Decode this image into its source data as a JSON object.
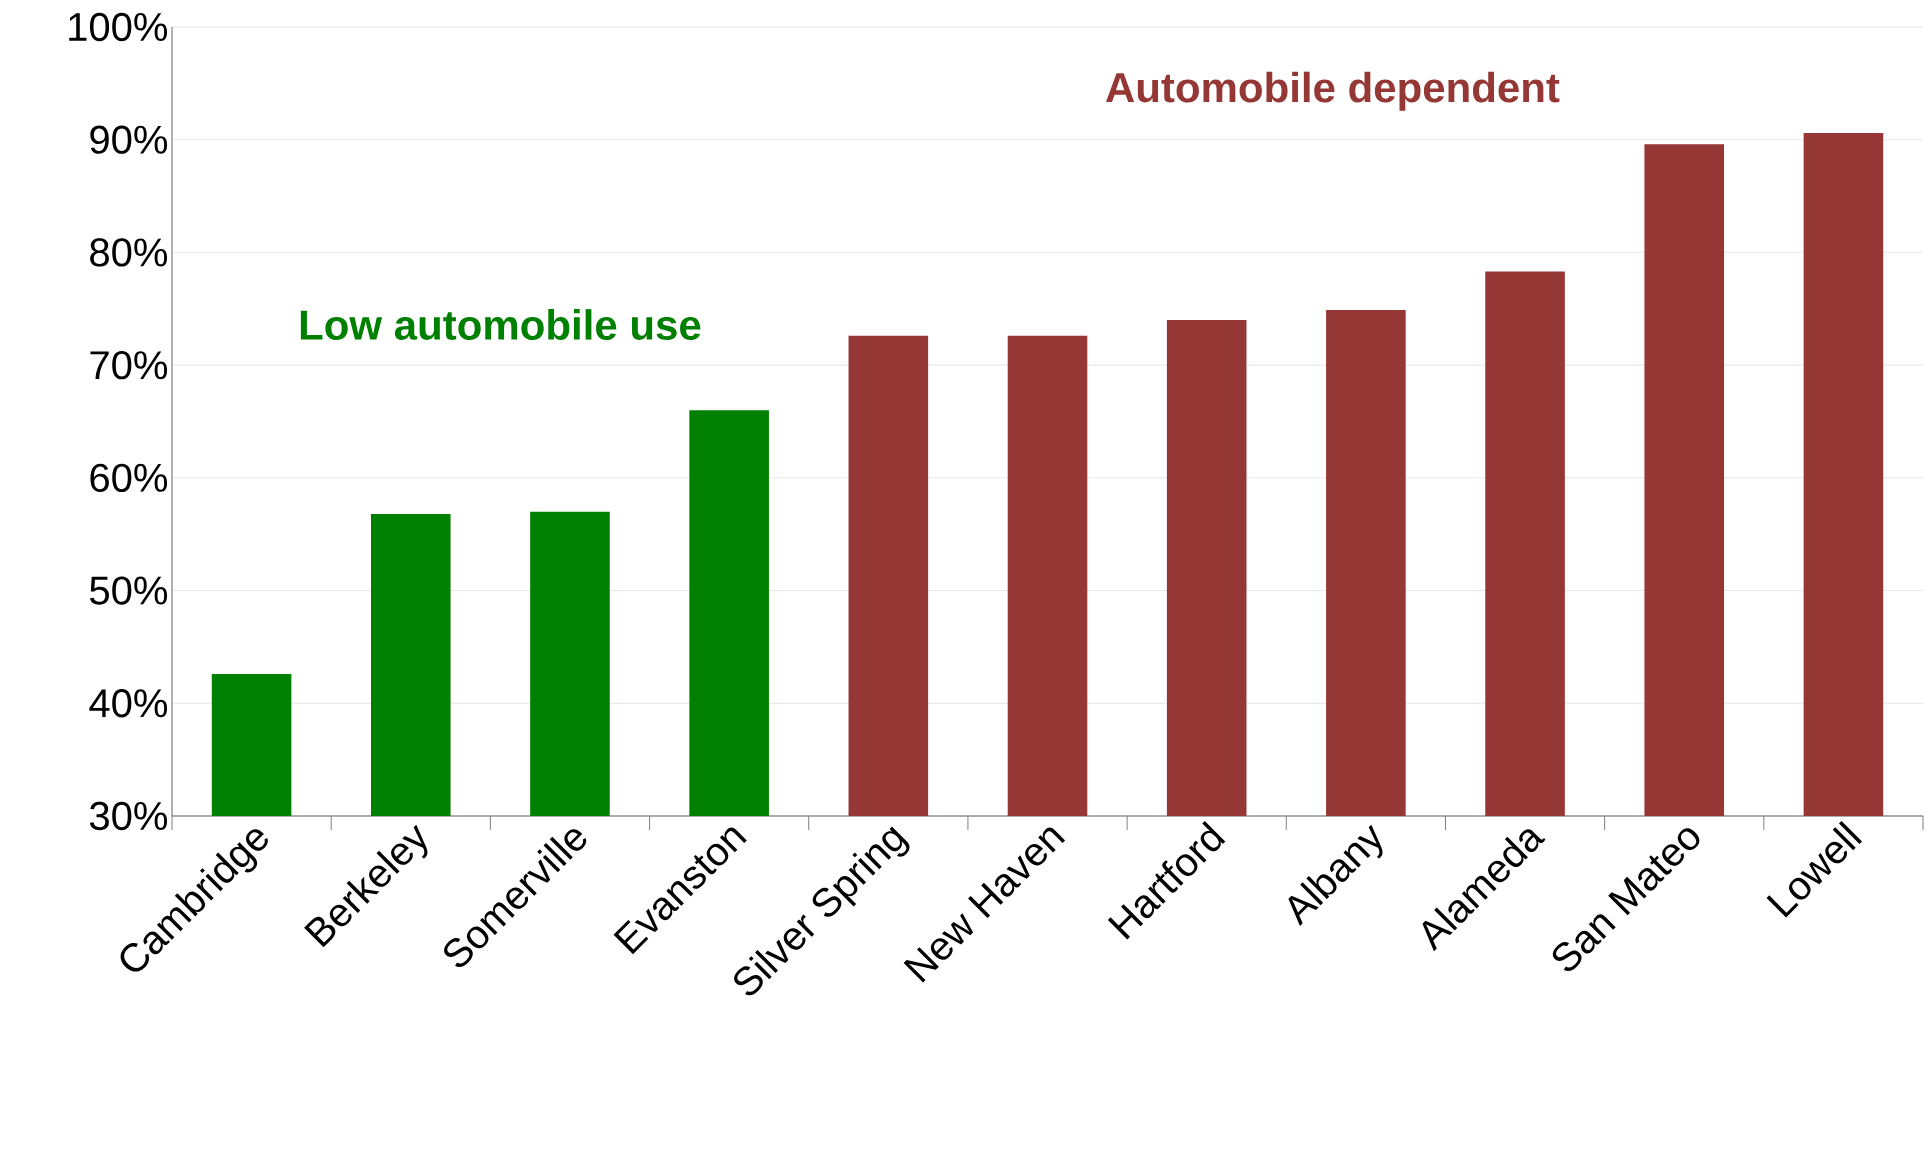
{
  "chart_data": {
    "type": "bar",
    "categories": [
      "Cambridge",
      "Berkeley",
      "Somerville",
      "Evanston",
      "Silver Spring",
      "New Haven",
      "Hartford",
      "Albany",
      "Alameda",
      "San Mateo",
      "Lowell"
    ],
    "values": [
      42.6,
      56.8,
      57.0,
      66.0,
      72.6,
      72.6,
      74.0,
      74.9,
      78.3,
      89.6,
      90.6
    ],
    "colors": [
      "#008000",
      "#008000",
      "#008000",
      "#008000",
      "#953735",
      "#953735",
      "#953735",
      "#953735",
      "#953735",
      "#953735",
      "#953735"
    ],
    "ylim": [
      30,
      100
    ],
    "yticks": [
      {
        "value": 30,
        "label": "30%"
      },
      {
        "value": 40,
        "label": "40%"
      },
      {
        "value": 50,
        "label": "50%"
      },
      {
        "value": 60,
        "label": "60%"
      },
      {
        "value": 70,
        "label": "70%"
      },
      {
        "value": 80,
        "label": "80%"
      },
      {
        "value": 90,
        "label": "90%"
      },
      {
        "value": 100,
        "label": "100%"
      }
    ],
    "grid": "y",
    "annotations": [
      "Low automobile use",
      "Automobile dependent"
    ]
  }
}
